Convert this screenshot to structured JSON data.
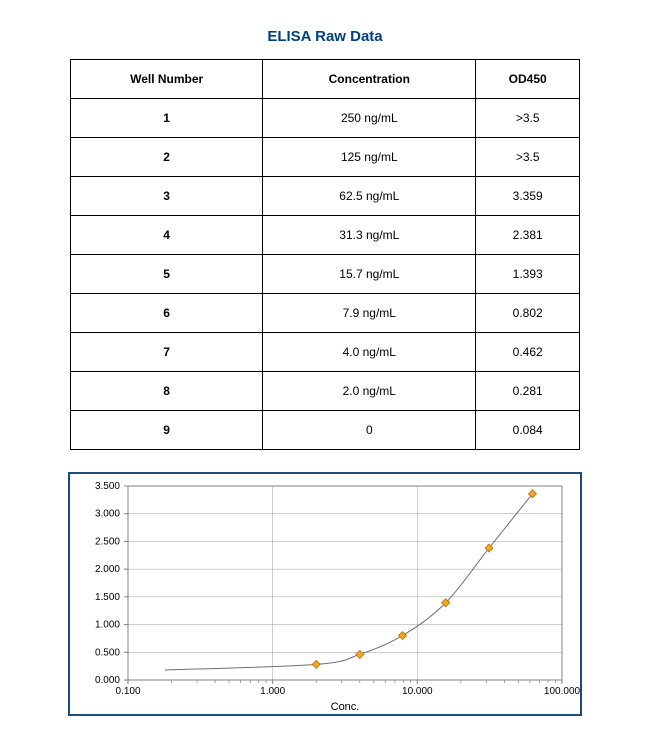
{
  "title": "ELISA Raw Data",
  "table": {
    "columns": [
      "Well Number",
      "Concentration",
      "OD450"
    ],
    "rows": [
      [
        "1",
        "250 ng/mL",
        ">3.5"
      ],
      [
        "2",
        "125 ng/mL",
        ">3.5"
      ],
      [
        "3",
        "62.5 ng/mL",
        "3.359"
      ],
      [
        "4",
        "31.3 ng/mL",
        "2.381"
      ],
      [
        "5",
        "15.7 ng/mL",
        "1.393"
      ],
      [
        "6",
        "7.9 ng/mL",
        "0.802"
      ],
      [
        "7",
        "4.0 ng/mL",
        "0.462"
      ],
      [
        "8",
        "2.0 ng/mL",
        "0.281"
      ],
      [
        "9",
        "0",
        "0.084"
      ]
    ],
    "header_fontsize": 12,
    "cell_fontsize": 12,
    "border_color": "#000000"
  },
  "chart": {
    "type": "scatter_with_curve",
    "xlabel": "Conc.",
    "x_scale": "log",
    "xlim": [
      0.1,
      100.0
    ],
    "ylim": [
      0.0,
      3.5
    ],
    "xticks": [
      0.1,
      1.0,
      10.0,
      100.0
    ],
    "xtick_labels": [
      "0.100",
      "1.000",
      "10.000",
      "100.000"
    ],
    "yticks": [
      0.0,
      0.5,
      1.0,
      1.5,
      2.0,
      2.5,
      3.0,
      3.5
    ],
    "ytick_labels": [
      "0.000",
      "0.500",
      "1.000",
      "1.500",
      "2.000",
      "2.500",
      "3.000",
      "3.500"
    ],
    "points": [
      {
        "x": 2.0,
        "y": 0.281
      },
      {
        "x": 4.0,
        "y": 0.462
      },
      {
        "x": 7.9,
        "y": 0.802
      },
      {
        "x": 15.7,
        "y": 1.393
      },
      {
        "x": 31.3,
        "y": 2.381
      },
      {
        "x": 62.5,
        "y": 3.359
      }
    ],
    "curve_start": {
      "x": 0.18,
      "y": 0.18
    },
    "background_color": "#ffffff",
    "border_color": "#1c4d7a",
    "border_width": 2,
    "grid_color": "#b0b0b0",
    "tick_color": "#808080",
    "curve_color": "#707070",
    "curve_width": 1,
    "marker_fill": "#f5a623",
    "marker_stroke": "#b86e00",
    "marker_size": 4,
    "tick_fontsize": 10,
    "label_fontsize": 11
  },
  "colors": {
    "title_color": "#004080",
    "text_color": "#000000"
  }
}
